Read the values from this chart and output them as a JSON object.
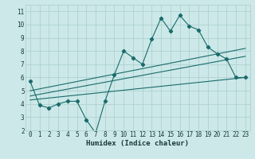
{
  "xlabel": "Humidex (Indice chaleur)",
  "bg_color": "#cce8e8",
  "grid_color": "#aacece",
  "line_color": "#1a6b6b",
  "xlim": [
    -0.5,
    23.5
  ],
  "ylim": [
    2,
    11.5
  ],
  "xticks": [
    0,
    1,
    2,
    3,
    4,
    5,
    6,
    7,
    8,
    9,
    10,
    11,
    12,
    13,
    14,
    15,
    16,
    17,
    18,
    19,
    20,
    21,
    22,
    23
  ],
  "yticks": [
    2,
    3,
    4,
    5,
    6,
    7,
    8,
    9,
    10,
    11
  ],
  "series1_x": [
    0,
    1,
    2,
    3,
    4,
    5,
    6,
    7,
    8,
    9,
    10,
    11,
    12,
    13,
    14,
    15,
    16,
    17,
    18,
    19,
    20,
    21,
    22,
    23
  ],
  "series1_y": [
    5.7,
    3.9,
    3.7,
    4.0,
    4.2,
    4.2,
    2.8,
    1.8,
    4.2,
    6.2,
    8.0,
    7.5,
    7.0,
    8.9,
    10.5,
    9.5,
    10.7,
    9.9,
    9.6,
    8.3,
    7.8,
    7.4,
    6.0,
    6.0
  ],
  "trend1_x": [
    0,
    23
  ],
  "trend1_y": [
    4.3,
    6.0
  ],
  "trend2_x": [
    0,
    23
  ],
  "trend2_y": [
    4.6,
    7.6
  ],
  "trend3_x": [
    0,
    23
  ],
  "trend3_y": [
    5.0,
    8.2
  ]
}
